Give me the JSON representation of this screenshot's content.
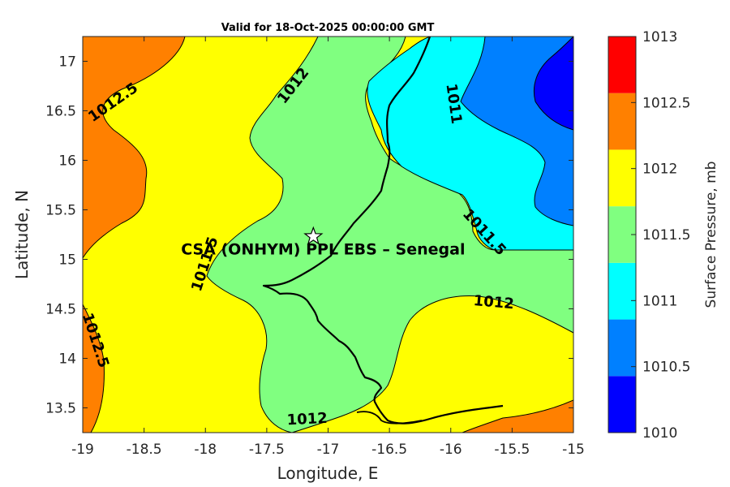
{
  "title": "Valid for 18-Oct-2025 00:00:00 GMT",
  "x_axis": {
    "label": "Longitude, E",
    "range": [
      -19,
      -15
    ],
    "ticks": [
      "-19",
      "-18.5",
      "-18",
      "-17.5",
      "-17",
      "-16.5",
      "-16",
      "-15.5",
      "-15"
    ]
  },
  "y_axis": {
    "label": "Latitude, N",
    "range": [
      13.25,
      17.25
    ],
    "ticks": [
      "13.5",
      "14",
      "14.5",
      "15",
      "15.5",
      "16",
      "16.5",
      "17"
    ]
  },
  "colorbar": {
    "title": "Surface Pressure, mb",
    "levels": [
      "1010",
      "1010.5",
      "1011",
      "1011.5",
      "1012",
      "1012.5",
      "1013"
    ],
    "colors": [
      "#0000ff",
      "#0080ff",
      "#00ffff",
      "#80ff80",
      "#ffff00",
      "#ff8000",
      "#ff0000"
    ]
  },
  "contour_labels": [
    {
      "text": "1012.5",
      "lon": -18.75,
      "lat": 16.58
    },
    {
      "text": "1012",
      "lon": -17.28,
      "lat": 16.75
    },
    {
      "text": "1011",
      "lon": -15.98,
      "lat": 16.57
    },
    {
      "text": "1011.5",
      "lon": -15.73,
      "lat": 15.27
    },
    {
      "text": "1012",
      "lon": -15.65,
      "lat": 14.56
    },
    {
      "text": "1012",
      "lon": -17.17,
      "lat": 13.38
    },
    {
      "text": "1011.5",
      "lon": -18.0,
      "lat": 14.95
    },
    {
      "text": "1012.5",
      "lon": -18.9,
      "lat": 14.18
    }
  ],
  "site": {
    "label": "CSA (ONHYM) PPL EBS  – Senegal",
    "lon": -17.12,
    "lat": 15.23
  }
}
